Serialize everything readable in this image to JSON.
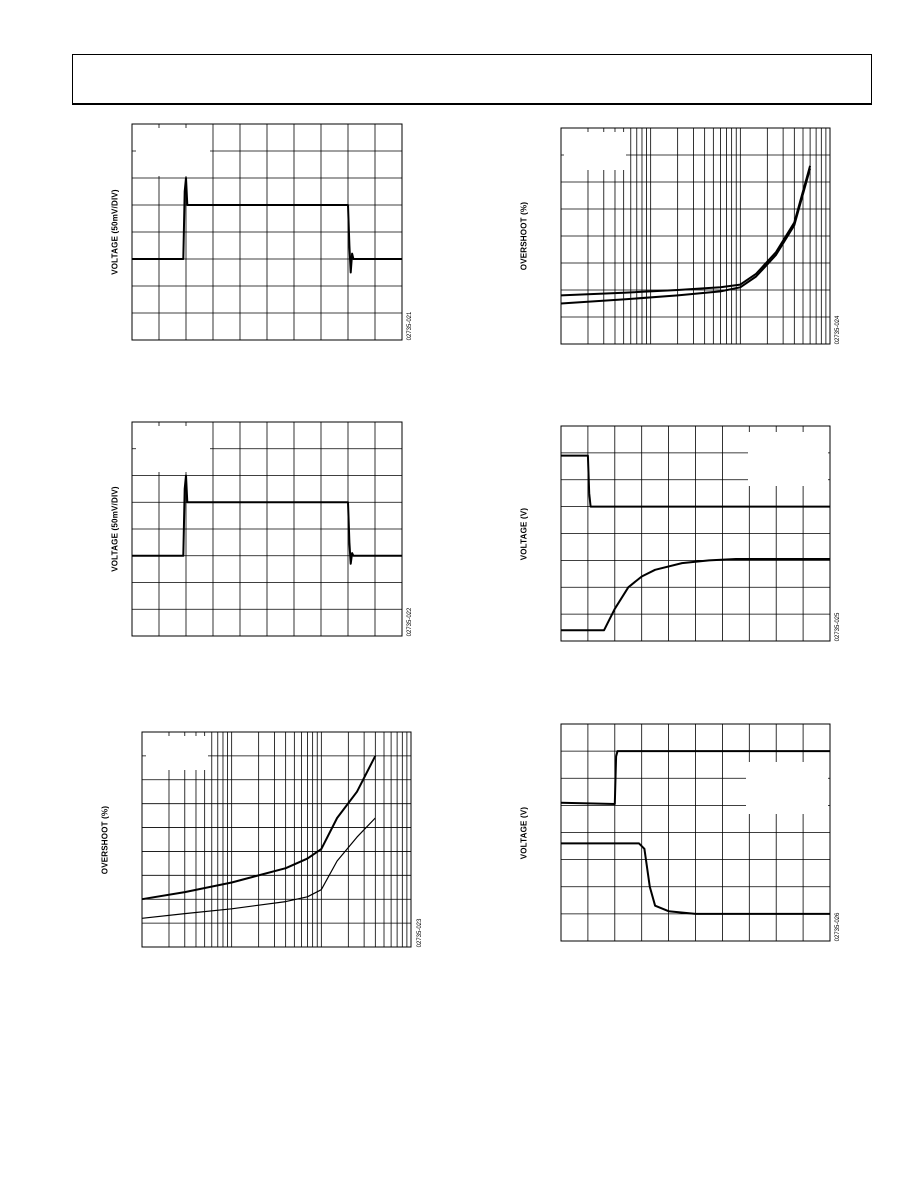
{
  "chart_data": [
    {
      "type": "line",
      "ylabel": "VOLTAGE (50mV/DIV)",
      "figure_id": "02735-021",
      "grid": true,
      "divisions": {
        "x": 10,
        "y": 8
      },
      "series": [
        {
          "x": [
            0,
            1.9,
            1.95,
            2.0,
            2.05,
            2.1,
            8.0,
            8.05,
            8.1,
            8.15,
            8.2,
            10
          ],
          "y": [
            3,
            3,
            5.5,
            6,
            5,
            5,
            5,
            3.5,
            2.5,
            3.2,
            3,
            3
          ]
        }
      ]
    },
    {
      "type": "line",
      "ylabel": "VOLTAGE (50mV/DIV)",
      "figure_id": "02735-022",
      "grid": true,
      "divisions": {
        "x": 10,
        "y": 8
      },
      "series": [
        {
          "x": [
            0,
            1.9,
            1.95,
            2.0,
            2.05,
            2.1,
            8.0,
            8.05,
            8.1,
            8.15,
            8.2,
            10
          ],
          "y": [
            3,
            3,
            5.5,
            6,
            5,
            5,
            5,
            3.5,
            2.7,
            3.1,
            3,
            3
          ]
        }
      ]
    },
    {
      "type": "line",
      "ylabel": "OVERSHOOT (%)",
      "figure_id": "02735-023",
      "grid": true,
      "xscale": "log",
      "divisions": {
        "x_decades": 3,
        "y": 9
      },
      "series": [
        {
          "x": [
            1,
            3,
            10,
            40,
            70,
            100,
            150,
            250,
            400
          ],
          "y": [
            2,
            2.3,
            2.7,
            3.3,
            3.7,
            4.1,
            5.4,
            6.5,
            8
          ]
        },
        {
          "x": [
            1,
            3,
            10,
            40,
            70,
            100,
            150,
            250,
            400
          ],
          "y": [
            1.2,
            1.4,
            1.6,
            1.9,
            2.1,
            2.4,
            3.6,
            4.6,
            5.4
          ]
        }
      ]
    },
    {
      "type": "line",
      "ylabel": "OVERSHOOT (%)",
      "figure_id": "02735-024",
      "grid": true,
      "xscale": "log",
      "divisions": {
        "x_decades": 3,
        "y": 8
      },
      "series": [
        {
          "x": [
            1,
            5,
            20,
            60,
            100,
            150,
            250,
            400,
            600
          ],
          "y": [
            1.8,
            1.9,
            2.0,
            2.1,
            2.2,
            2.6,
            3.4,
            4.5,
            6.6
          ]
        },
        {
          "x": [
            1,
            5,
            20,
            60,
            100,
            150,
            250,
            400,
            600
          ],
          "y": [
            1.5,
            1.65,
            1.8,
            1.95,
            2.1,
            2.5,
            3.3,
            4.4,
            6.5
          ]
        }
      ]
    },
    {
      "type": "line",
      "ylabel": "VOLTAGE (V)",
      "figure_id": "02735-025",
      "grid": true,
      "divisions": {
        "x": 10,
        "y": 8
      },
      "series": [
        {
          "x": [
            0,
            1.0,
            1.05,
            1.1,
            10
          ],
          "y": [
            6.9,
            6.9,
            5.5,
            5.0,
            5.0
          ]
        },
        {
          "x": [
            0,
            1.6,
            2.0,
            2.5,
            3.0,
            3.5,
            4.5,
            5.5,
            6.5,
            10
          ],
          "y": [
            0.4,
            0.4,
            1.2,
            2.0,
            2.4,
            2.65,
            2.9,
            3.0,
            3.05,
            3.05
          ]
        }
      ]
    },
    {
      "type": "line",
      "ylabel": "VOLTAGE (V)",
      "figure_id": "02735-026",
      "grid": true,
      "divisions": {
        "x": 10,
        "y": 8
      },
      "series": [
        {
          "x": [
            0,
            2.0,
            2.05,
            2.1,
            10
          ],
          "y": [
            5.1,
            5.05,
            6.8,
            7.0,
            7.0
          ]
        },
        {
          "x": [
            0,
            2.9,
            3.1,
            3.3,
            3.5,
            4.0,
            5.0,
            6.0,
            10
          ],
          "y": [
            3.6,
            3.6,
            3.4,
            2.0,
            1.3,
            1.1,
            1.0,
            1.0,
            1.0
          ]
        }
      ]
    }
  ]
}
